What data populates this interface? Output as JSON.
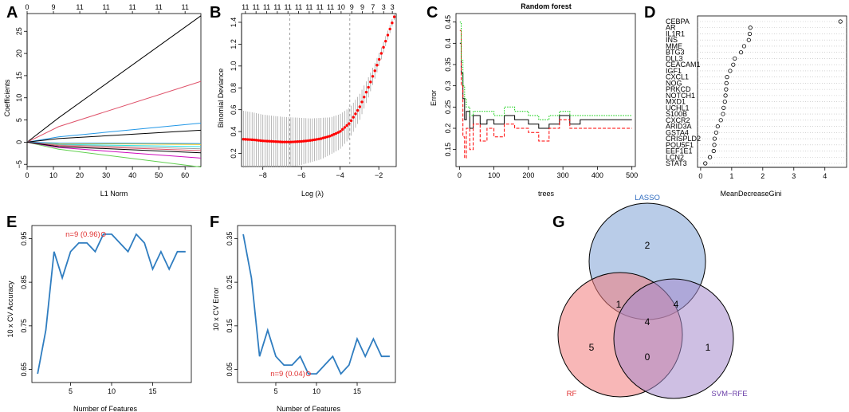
{
  "panels": {
    "A": {
      "letter": "A",
      "xlabel": "L1 Norm",
      "ylabel": "Coefficients"
    },
    "B": {
      "letter": "B",
      "xlabel": "Log (λ)",
      "ylabel": "Binomial Deviance"
    },
    "C": {
      "letter": "C",
      "xlabel": "trees",
      "ylabel": "Error",
      "title": "Random forest"
    },
    "D": {
      "letter": "D",
      "xlabel": "MeanDecreaseGini"
    },
    "E": {
      "letter": "E",
      "xlabel": "Number of Features",
      "ylabel": "10 x CV Accuracy",
      "annotation": "n=9 (0.96)"
    },
    "F": {
      "letter": "F",
      "xlabel": "Number of Features",
      "ylabel": "10 x CV Error",
      "annotation": "n=9 (0.04)"
    },
    "G": {
      "letter": "G"
    }
  },
  "chart_data": [
    {
      "id": "A",
      "type": "line",
      "xlabel": "L1 Norm",
      "ylabel": "Coefficients",
      "xlim": [
        0,
        66
      ],
      "ylim": [
        -5.5,
        29
      ],
      "xticks": [
        0,
        10,
        20,
        30,
        40,
        50,
        60
      ],
      "yticks": [
        -5,
        0,
        5,
        10,
        15,
        20,
        25
      ],
      "top_ticks": {
        "positions": [
          0,
          10,
          20,
          30,
          40,
          50,
          60
        ],
        "labels": [
          "0",
          "9",
          "11",
          "11",
          "11",
          "11",
          "11"
        ]
      },
      "series": [
        {
          "name": "path1",
          "color": "#000000",
          "x": [
            0,
            12,
            66
          ],
          "y": [
            0,
            5.5,
            28.5
          ]
        },
        {
          "name": "path2",
          "color": "#DF536B",
          "x": [
            0,
            12,
            66
          ],
          "y": [
            0,
            3.5,
            13.7
          ]
        },
        {
          "name": "path3",
          "color": "#61D04F",
          "x": [
            0,
            12,
            66
          ],
          "y": [
            0,
            -1.6,
            -5.6
          ]
        },
        {
          "name": "path4",
          "color": "#2297E6",
          "x": [
            0,
            12,
            66
          ],
          "y": [
            0,
            1.2,
            4.3
          ]
        },
        {
          "name": "path5",
          "color": "#000000",
          "x": [
            0,
            12,
            66
          ],
          "y": [
            0,
            0.8,
            2.7
          ]
        },
        {
          "name": "path6",
          "color": "#CD0BBC",
          "x": [
            0,
            12,
            66
          ],
          "y": [
            0,
            -1.2,
            -3.6
          ]
        },
        {
          "name": "path7",
          "color": "#28E2E5",
          "x": [
            0,
            12,
            66
          ],
          "y": [
            0,
            -0.5,
            -1.0
          ]
        },
        {
          "name": "path8",
          "color": "#F5C710",
          "x": [
            0,
            12,
            66
          ],
          "y": [
            0,
            -0.3,
            -0.5
          ]
        },
        {
          "name": "path9",
          "color": "#9E9E9E",
          "x": [
            0,
            12,
            66
          ],
          "y": [
            0,
            -0.6,
            -1.5
          ]
        },
        {
          "name": "path10",
          "color": "#2297E6",
          "x": [
            0,
            12,
            66
          ],
          "y": [
            0,
            -0.2,
            -0.3
          ]
        },
        {
          "name": "path11",
          "color": "#DF536B",
          "x": [
            0,
            12,
            66
          ],
          "y": [
            0,
            -0.8,
            -1.9
          ]
        },
        {
          "name": "path12",
          "color": "#000000",
          "x": [
            0,
            12,
            66
          ],
          "y": [
            0,
            -1.0,
            -2.4
          ]
        }
      ]
    },
    {
      "id": "B",
      "type": "line",
      "xlabel": "Log (λ)",
      "ylabel": "Binomial Deviance",
      "xlim": [
        -9.1,
        -1.1
      ],
      "ylim": [
        0.08,
        1.48
      ],
      "xticks": [
        -8,
        -6,
        -4,
        -2
      ],
      "yticks": [
        0.2,
        0.4,
        0.6,
        0.8,
        1.0,
        1.2,
        1.4
      ],
      "top_ticks": {
        "positions": [
          -8.9,
          -8.35,
          -7.8,
          -7.25,
          -6.7,
          -6.15,
          -5.6,
          -5.05,
          -4.5,
          -3.95,
          -3.4,
          -2.85,
          -2.3,
          -1.75,
          -1.3
        ],
        "labels": [
          "11",
          "11",
          "11",
          "11",
          "11",
          "11",
          "11",
          "11",
          "11",
          "10",
          "9",
          "9",
          "7",
          "3",
          "3"
        ]
      },
      "vlines": [
        -6.6,
        -3.5
      ],
      "series": [
        {
          "name": "mean deviance",
          "color": "#FF0000",
          "x": [
            -9.0,
            -8.5,
            -8.0,
            -7.5,
            -7.0,
            -6.5,
            -6.0,
            -5.5,
            -5.0,
            -4.5,
            -4.0,
            -3.5,
            -3.0,
            -2.5,
            -2.0,
            -1.5,
            -1.2
          ],
          "y": [
            0.33,
            0.325,
            0.315,
            0.31,
            0.305,
            0.305,
            0.31,
            0.32,
            0.335,
            0.36,
            0.4,
            0.48,
            0.62,
            0.82,
            1.05,
            1.3,
            1.45
          ],
          "err": [
            0.26,
            0.25,
            0.24,
            0.235,
            0.23,
            0.225,
            0.215,
            0.2,
            0.19,
            0.17,
            0.16,
            0.14,
            0.12,
            0.09,
            0.06,
            0.04,
            0.03
          ]
        }
      ]
    },
    {
      "id": "C",
      "type": "line",
      "title": "Random forest",
      "xlabel": "trees",
      "ylabel": "Error",
      "xlim": [
        -10,
        510
      ],
      "ylim": [
        0.11,
        0.47
      ],
      "xticks": [
        0,
        100,
        200,
        300,
        400,
        500
      ],
      "yticks": [
        0.15,
        0.2,
        0.25,
        0.3,
        0.35,
        0.4,
        0.45
      ],
      "series": [
        {
          "name": "OOB",
          "color": "#000000",
          "dash": "solid",
          "x": [
            1,
            5,
            10,
            15,
            20,
            30,
            40,
            60,
            80,
            100,
            130,
            160,
            200,
            230,
            260,
            290,
            320,
            350,
            400,
            450,
            500
          ],
          "y": [
            0.4,
            0.33,
            0.27,
            0.22,
            0.24,
            0.2,
            0.23,
            0.21,
            0.22,
            0.21,
            0.23,
            0.22,
            0.21,
            0.2,
            0.21,
            0.23,
            0.21,
            0.22,
            0.22,
            0.22,
            0.22
          ]
        },
        {
          "name": "class1",
          "color": "#FF0000",
          "dash": "dashed",
          "x": [
            1,
            5,
            10,
            15,
            20,
            30,
            40,
            60,
            80,
            100,
            130,
            160,
            200,
            230,
            260,
            290,
            320,
            350,
            400,
            450,
            500
          ],
          "y": [
            0.43,
            0.3,
            0.18,
            0.13,
            0.2,
            0.15,
            0.21,
            0.17,
            0.2,
            0.18,
            0.21,
            0.2,
            0.19,
            0.17,
            0.2,
            0.22,
            0.2,
            0.2,
            0.2,
            0.2,
            0.2
          ]
        },
        {
          "name": "class2",
          "color": "#00CC00",
          "dash": "dotted",
          "x": [
            1,
            5,
            10,
            15,
            20,
            30,
            40,
            60,
            80,
            100,
            130,
            160,
            200,
            230,
            260,
            290,
            320,
            350,
            400,
            450,
            500
          ],
          "y": [
            0.45,
            0.36,
            0.3,
            0.27,
            0.25,
            0.23,
            0.24,
            0.24,
            0.24,
            0.23,
            0.25,
            0.24,
            0.23,
            0.22,
            0.23,
            0.24,
            0.23,
            0.23,
            0.23,
            0.23,
            0.23
          ]
        }
      ]
    },
    {
      "id": "D",
      "type": "scatter",
      "xlabel": "MeanDecreaseGini",
      "xlim": [
        -0.1,
        4.7
      ],
      "xticks": [
        0,
        1,
        2,
        3,
        4
      ],
      "labels": [
        "CEBPA",
        "AR",
        "IL1R1",
        "INS",
        "MME",
        "BTG3",
        "DLL3",
        "CEACAM1",
        "IGF1",
        "CXCL1",
        "NOG",
        "PRKCD",
        "NOTCH1",
        "MXD1",
        "UCHL1",
        "S100B",
        "CXCR2",
        "ARID3A",
        "GSTA4",
        "CRISPLD2",
        "POU5F1",
        "EEF1E1",
        "LCN2",
        "STAT3"
      ],
      "values": [
        4.5,
        1.6,
        1.58,
        1.55,
        1.4,
        1.3,
        1.1,
        1.05,
        0.95,
        0.85,
        0.83,
        0.82,
        0.8,
        0.78,
        0.74,
        0.72,
        0.65,
        0.55,
        0.5,
        0.45,
        0.44,
        0.42,
        0.3,
        0.15
      ]
    },
    {
      "id": "E",
      "type": "line",
      "xlabel": "Number of Features",
      "ylabel": "10 x CV Accuracy",
      "xlim": [
        0.3,
        19.7
      ],
      "ylim": [
        0.62,
        0.98
      ],
      "xticks": [
        5,
        10,
        15
      ],
      "yticks": [
        0.65,
        0.75,
        0.85,
        0.95
      ],
      "annotation": {
        "text": "n=9 (0.96)",
        "x": 9,
        "y": 0.96
      },
      "x": [
        1,
        2,
        3,
        4,
        5,
        6,
        7,
        8,
        9,
        10,
        11,
        12,
        13,
        14,
        15,
        16,
        17,
        18,
        19
      ],
      "y": [
        0.64,
        0.74,
        0.92,
        0.86,
        0.92,
        0.94,
        0.94,
        0.92,
        0.96,
        0.96,
        0.94,
        0.92,
        0.96,
        0.94,
        0.88,
        0.92,
        0.88,
        0.92,
        0.92
      ],
      "color": "#2F7DC0"
    },
    {
      "id": "F",
      "type": "line",
      "xlabel": "Number of Features",
      "ylabel": "10 x CV Error",
      "xlim": [
        0.3,
        19.7
      ],
      "ylim": [
        0.02,
        0.38
      ],
      "xticks": [
        5,
        10,
        15
      ],
      "yticks": [
        0.05,
        0.15,
        0.25,
        0.35
      ],
      "annotation": {
        "text": "n=9 (0.04)",
        "x": 9,
        "y": 0.04
      },
      "x": [
        1,
        2,
        3,
        4,
        5,
        6,
        7,
        8,
        9,
        10,
        11,
        12,
        13,
        14,
        15,
        16,
        17,
        18,
        19
      ],
      "y": [
        0.36,
        0.26,
        0.08,
        0.14,
        0.08,
        0.06,
        0.06,
        0.08,
        0.04,
        0.04,
        0.06,
        0.08,
        0.04,
        0.06,
        0.12,
        0.08,
        0.12,
        0.08,
        0.08
      ],
      "color": "#2F7DC0"
    },
    {
      "id": "G",
      "type": "venn",
      "sets": [
        {
          "name": "LASSO",
          "color": "#7FA3D6",
          "label_color": "#2F6CC0"
        },
        {
          "name": "RF",
          "color": "#F27C7C",
          "label_color": "#E03030"
        },
        {
          "name": "SVM−RFE",
          "color": "#A58ACC",
          "label_color": "#6A3FA8"
        }
      ],
      "regions": {
        "LASSO_only": "2",
        "RF_only": "5",
        "SVM_only": "1",
        "LASSO_RF": "1",
        "LASSO_SVM": "4",
        "RF_SVM": "0",
        "all": "4"
      }
    }
  ]
}
